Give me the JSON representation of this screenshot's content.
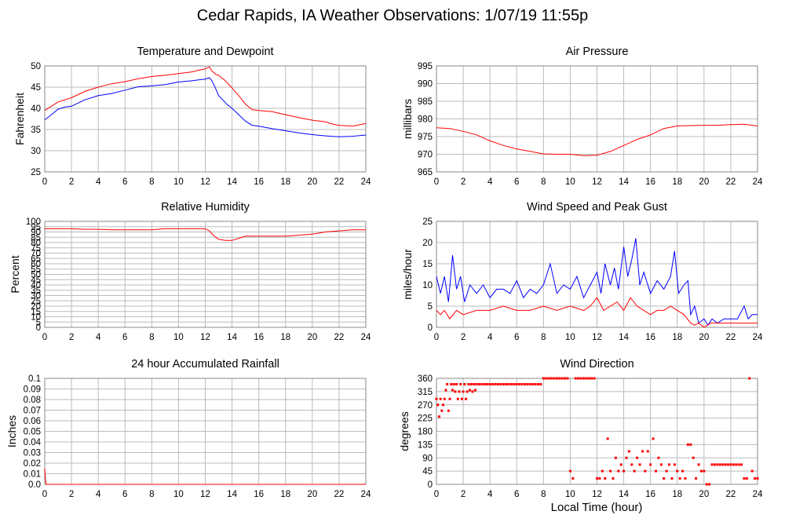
{
  "title": "Cedar Rapids, IA Weather Observations: 1/07/19 11:55p",
  "x_axis_label": "Local Time (hour)",
  "x_ticks": [
    "0",
    "2",
    "4",
    "6",
    "8",
    "10",
    "12",
    "14",
    "16",
    "18",
    "20",
    "22",
    "24"
  ],
  "colors": {
    "red": "#ff0000",
    "blue": "#0000ff",
    "grid": "#bbbbbb",
    "frame": "#888888"
  },
  "chart_data": [
    {
      "id": "temp",
      "type": "line",
      "title": "Temperature and Dewpoint",
      "ylabel": "Fahrenheit",
      "xlim": [
        0,
        24
      ],
      "ylim": [
        25,
        50
      ],
      "yticks": [
        "25",
        "30",
        "35",
        "40",
        "45",
        "50"
      ],
      "series": [
        {
          "color": "#ff0000",
          "x": [
            0,
            0.5,
            1,
            1.5,
            2,
            3,
            4,
            5,
            6,
            7,
            8,
            9,
            10,
            11,
            11.5,
            12,
            12.3,
            12.5,
            12.8,
            13,
            13.5,
            14,
            14.5,
            15,
            15.5,
            16,
            17,
            18,
            19,
            20,
            21,
            21.5,
            22,
            23,
            24
          ],
          "y": [
            39.5,
            40.5,
            41.5,
            42,
            42.5,
            44,
            45,
            45.8,
            46.3,
            47,
            47.5,
            47.8,
            48.2,
            48.6,
            49,
            49.3,
            49.8,
            48.8,
            48,
            47.8,
            46.5,
            44.8,
            43,
            41,
            39.7,
            39.5,
            39.2,
            38.5,
            37.8,
            37.2,
            36.8,
            36.3,
            36,
            35.8,
            36.4
          ]
        },
        {
          "color": "#0000ff",
          "x": [
            0,
            0.5,
            1,
            1.5,
            2,
            3,
            4,
            5,
            6,
            7,
            8,
            9,
            10,
            11,
            11.5,
            12,
            12.3,
            12.5,
            12.8,
            13,
            13.3,
            13.6,
            14,
            14.5,
            15,
            15.5,
            16,
            17,
            18,
            19,
            20,
            21,
            22,
            23,
            24
          ],
          "y": [
            37.3,
            38.5,
            39.8,
            40.3,
            40.5,
            42,
            43,
            43.5,
            44.3,
            45.1,
            45.3,
            45.6,
            46.2,
            46.5,
            46.7,
            46.9,
            47.2,
            46.5,
            44.5,
            43,
            42,
            41,
            40,
            38.5,
            37,
            36,
            35.8,
            35.2,
            34.7,
            34.2,
            33.8,
            33.5,
            33.3,
            33.4,
            33.7
          ]
        }
      ]
    },
    {
      "id": "pressure",
      "type": "line",
      "title": "Air Pressure",
      "ylabel": "millibars",
      "xlim": [
        0,
        24
      ],
      "ylim": [
        965,
        995
      ],
      "yticks": [
        "965",
        "970",
        "975",
        "980",
        "985",
        "990",
        "995"
      ],
      "series": [
        {
          "color": "#ff0000",
          "x": [
            0,
            1,
            2,
            3,
            4,
            5,
            6,
            7,
            8,
            9,
            10,
            11,
            12,
            13,
            14,
            15,
            16,
            17,
            18,
            19,
            20,
            21,
            22,
            23,
            24
          ],
          "y": [
            977.5,
            977.3,
            976.5,
            975.5,
            973.8,
            972.5,
            971.5,
            970.8,
            970.1,
            970.0,
            970.0,
            969.6,
            969.7,
            970.8,
            972.5,
            974.2,
            975.5,
            977.3,
            978.0,
            978.1,
            978.2,
            978.2,
            978.4,
            978.5,
            978.0
          ]
        }
      ]
    },
    {
      "id": "rh",
      "type": "line",
      "title": "Relative Humidity",
      "ylabel": "Percent",
      "xlim": [
        0,
        24
      ],
      "ylim": [
        0,
        100
      ],
      "yticks": [
        "0",
        "5",
        "10",
        "15",
        "20",
        "25",
        "30",
        "35",
        "40",
        "45",
        "50",
        "55",
        "60",
        "65",
        "70",
        "75",
        "80",
        "85",
        "90",
        "95",
        "100"
      ],
      "series": [
        {
          "color": "#ff0000",
          "x": [
            0,
            1,
            2,
            3,
            4,
            5,
            6,
            7,
            8,
            9,
            10,
            11,
            12,
            12.3,
            12.6,
            13,
            13.5,
            14,
            14.5,
            15,
            16,
            17,
            18,
            19,
            20,
            21,
            22,
            23,
            24
          ],
          "y": [
            93,
            93,
            93,
            92.5,
            92.5,
            92,
            92,
            92,
            92,
            93,
            93,
            93,
            93,
            91,
            87,
            83,
            82,
            82,
            84,
            86,
            86,
            86,
            86,
            87,
            88,
            90,
            91,
            92,
            92
          ]
        }
      ]
    },
    {
      "id": "wind",
      "type": "line",
      "title": "Wind Speed and Peak Gust",
      "ylabel": "miles/hour",
      "xlim": [
        0,
        24
      ],
      "ylim": [
        0,
        25
      ],
      "yticks": [
        "0",
        "5",
        "10",
        "15",
        "20",
        "25"
      ],
      "series": [
        {
          "color": "#0000ff",
          "x": [
            0,
            0.3,
            0.6,
            0.9,
            1.2,
            1.5,
            1.8,
            2.1,
            2.5,
            3,
            3.5,
            4,
            4.5,
            5,
            5.5,
            6,
            6.5,
            7,
            7.5,
            8,
            8.5,
            9,
            9.5,
            10,
            10.5,
            11,
            11.5,
            12,
            12.3,
            12.6,
            13,
            13.3,
            13.6,
            14,
            14.3,
            14.6,
            14.9,
            15.2,
            15.5,
            16,
            16.5,
            17,
            17.5,
            17.8,
            18.1,
            18.5,
            18.8,
            19,
            19.3,
            19.6,
            20,
            20.3,
            20.6,
            21,
            21.5,
            22,
            22.5,
            23,
            23.3,
            23.6,
            24
          ],
          "y": [
            12,
            8,
            12,
            6,
            17,
            9,
            12,
            6,
            10,
            8,
            10,
            7,
            9,
            9,
            8,
            11,
            7,
            9,
            8,
            10,
            15,
            8,
            10,
            9,
            12,
            7,
            10,
            13,
            8,
            15,
            10,
            14,
            9,
            19,
            12,
            16,
            21,
            10,
            13,
            8,
            11,
            9,
            12,
            18,
            8,
            10,
            11,
            3,
            5,
            1,
            2,
            0.5,
            2,
            1,
            2,
            2,
            2,
            5,
            2,
            3,
            3
          ]
        },
        {
          "color": "#ff0000",
          "x": [
            0,
            0.3,
            0.6,
            1,
            1.5,
            2,
            3,
            4,
            5,
            6,
            7,
            8,
            9,
            10,
            11,
            11.5,
            12,
            12.5,
            13,
            13.5,
            14,
            14.5,
            15,
            15.5,
            16,
            16.5,
            17,
            17.5,
            18,
            18.5,
            19,
            19.3,
            19.6,
            20,
            20.5,
            21,
            22,
            23,
            24
          ],
          "y": [
            4,
            3,
            4,
            2,
            4,
            3,
            4,
            4,
            5,
            4,
            4,
            5,
            4,
            5,
            4,
            5,
            7,
            4,
            5,
            6,
            4,
            7,
            5,
            4,
            3,
            4,
            4,
            5,
            4,
            3,
            1,
            0.5,
            1,
            0,
            1,
            1,
            1,
            1,
            1
          ]
        }
      ]
    },
    {
      "id": "rain",
      "type": "line",
      "title": "24 hour Accumulated Rainfall",
      "ylabel": "Inches",
      "xlim": [
        0,
        24
      ],
      "ylim": [
        0,
        0.1
      ],
      "yticks": [
        "0.0",
        "0.01",
        "0.02",
        "0.03",
        "0.04",
        "0.05",
        "0.06",
        "0.07",
        "0.08",
        "0.09",
        "0.1"
      ],
      "series": [
        {
          "color": "#ff0000",
          "x": [
            0,
            0.05,
            0.1,
            24
          ],
          "y": [
            0.015,
            0.005,
            0,
            0
          ]
        }
      ]
    },
    {
      "id": "winddir",
      "type": "scatter",
      "title": "Wind Direction",
      "ylabel": "degrees",
      "xlim": [
        0,
        24
      ],
      "ylim": [
        0,
        360
      ],
      "yticks": [
        "0",
        "45",
        "90",
        "135",
        "180",
        "225",
        "270",
        "315",
        "360"
      ],
      "series": [
        {
          "color": "#ff0000",
          "x": [
            0,
            0.1,
            0.2,
            0.3,
            0.4,
            0.5,
            0.6,
            0.7,
            0.8,
            0.9,
            1.0,
            1.1,
            1.2,
            1.3,
            1.4,
            1.5,
            1.6,
            1.7,
            1.8,
            1.9,
            2.0,
            2.1,
            2.2,
            2.3,
            2.4,
            2.5,
            2.6,
            2.7,
            2.8,
            2.9,
            3.0,
            3.2,
            3.4,
            3.6,
            3.8,
            4.0,
            4.2,
            4.4,
            4.6,
            4.8,
            5.0,
            5.2,
            5.4,
            5.6,
            5.8,
            6.0,
            6.2,
            6.4,
            6.6,
            6.8,
            7.0,
            7.2,
            7.4,
            7.6,
            7.8,
            8.0,
            8.2,
            8.4,
            8.6,
            8.8,
            9.0,
            9.2,
            9.4,
            9.6,
            9.8,
            10.0,
            10.2,
            10.4,
            10.6,
            10.8,
            11.0,
            11.2,
            11.4,
            11.6,
            11.8,
            12.0,
            12.2,
            12.4,
            12.6,
            12.8,
            13.0,
            13.2,
            13.4,
            13.6,
            13.8,
            14.0,
            14.2,
            14.4,
            14.6,
            14.8,
            15.0,
            15.2,
            15.4,
            15.6,
            15.8,
            16.0,
            16.2,
            16.4,
            16.6,
            16.8,
            17.0,
            17.2,
            17.4,
            17.6,
            17.8,
            18.0,
            18.2,
            18.4,
            18.6,
            18.8,
            19.0,
            19.2,
            19.4,
            19.6,
            19.8,
            20.0,
            20.2,
            20.4,
            20.6,
            20.8,
            21.0,
            21.2,
            21.4,
            21.6,
            21.8,
            22.0,
            22.2,
            22.4,
            22.6,
            22.8,
            23.0,
            23.2,
            23.4,
            23.6,
            23.8,
            24.0
          ],
          "y": [
            290,
            270,
            230,
            290,
            250,
            270,
            290,
            320,
            340,
            250,
            290,
            340,
            320,
            340,
            315,
            340,
            290,
            315,
            340,
            290,
            315,
            340,
            290,
            315,
            340,
            320,
            340,
            315,
            340,
            320,
            340,
            340,
            340,
            340,
            340,
            340,
            340,
            340,
            340,
            340,
            340,
            340,
            340,
            340,
            340,
            340,
            340,
            340,
            340,
            340,
            340,
            340,
            340,
            340,
            340,
            360,
            360,
            360,
            360,
            360,
            360,
            360,
            360,
            360,
            360,
            45,
            20,
            360,
            360,
            360,
            360,
            360,
            360,
            360,
            360,
            20,
            20,
            45,
            20,
            155,
            45,
            20,
            90,
            45,
            67,
            45,
            90,
            112,
            67,
            45,
            90,
            67,
            112,
            45,
            112,
            67,
            155,
            45,
            90,
            67,
            20,
            45,
            67,
            20,
            67,
            45,
            20,
            45,
            20,
            135,
            135,
            90,
            20,
            67,
            45,
            45,
            0,
            0,
            67,
            67,
            67,
            67,
            67,
            67,
            67,
            67,
            67,
            67,
            67,
            67,
            20,
            20,
            360,
            45,
            20,
            20
          ]
        }
      ]
    }
  ]
}
